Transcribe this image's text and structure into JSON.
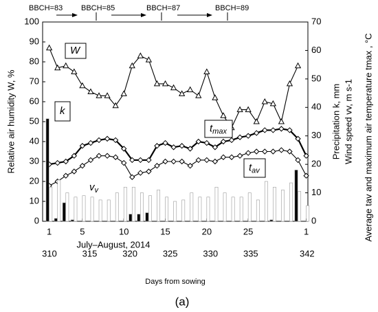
{
  "chart_data": {
    "type": "combo",
    "x": [
      1,
      2,
      3,
      4,
      5,
      6,
      7,
      8,
      9,
      10,
      11,
      12,
      13,
      14,
      15,
      16,
      17,
      18,
      19,
      20,
      21,
      22,
      23,
      24,
      25,
      26,
      27,
      28,
      29,
      30,
      31,
      32
    ],
    "xlim": [
      0.2,
      32.2
    ],
    "xticks": [
      1,
      5,
      10,
      15,
      20,
      25,
      {
        "value": 32,
        "label": "1"
      }
    ],
    "xlabel": "July–August, 2014",
    "x2lim": [
      309.15,
      342.1
    ],
    "x2ticks": [
      310,
      315,
      320,
      325,
      330,
      335,
      342
    ],
    "x2label": "Days from sowing",
    "ylim": [
      0,
      100
    ],
    "yticks": [
      0,
      10,
      20,
      30,
      40,
      50,
      60,
      70,
      80,
      90,
      100
    ],
    "ylabel": "Relative air humidity W, %",
    "y2lim": [
      0,
      70
    ],
    "y2ticks": [
      0,
      10,
      20,
      30,
      40,
      50,
      60,
      70
    ],
    "y2labels": [
      "Precipitation  k, mm",
      "Wind speed  vv, m s-1",
      "Average tav and maximum air temperature tmax , °C"
    ],
    "stages": [
      "BBCH=83",
      "BBCH=85",
      "BBCH=87",
      "BBCH=89"
    ],
    "panel_label": "(a)",
    "series": [
      {
        "name": "W",
        "type": "line",
        "marker": "triangle",
        "color": "#000000",
        "axis": "y",
        "values": [
          87,
          77,
          78,
          75,
          68,
          65,
          63,
          63,
          58,
          64,
          78,
          83,
          81,
          69,
          69,
          67,
          64,
          66,
          63,
          75,
          62,
          53,
          47,
          56,
          56,
          50,
          60,
          59,
          50,
          69,
          78,
          null
        ]
      },
      {
        "name": "t",
        "name_sub": "max",
        "type": "line",
        "marker": "diamond",
        "color": "#000000",
        "axis": "y2",
        "values": [
          20,
          20.5,
          21,
          23,
          26.5,
          27.5,
          28.5,
          29,
          28.5,
          25.5,
          21.5,
          21.5,
          21.5,
          26.5,
          27.5,
          26,
          26.5,
          25.5,
          28,
          27.5,
          26,
          28,
          28.5,
          29.5,
          30,
          31,
          32,
          32,
          32.5,
          32,
          29,
          23
        ]
      },
      {
        "name": "t",
        "name_sub": "av",
        "type": "line",
        "marker": "diamond",
        "color": "#000000",
        "axis": "y2",
        "values": [
          12.5,
          14,
          16,
          17.5,
          19.5,
          21.5,
          23,
          23,
          22.5,
          20.5,
          15.5,
          17,
          17.5,
          19.5,
          21,
          21,
          21,
          19.5,
          21.5,
          21.5,
          21,
          22.5,
          22.5,
          23,
          24,
          24.5,
          24.5,
          24.5,
          25,
          24.5,
          21.5,
          16
        ]
      },
      {
        "name": "k",
        "type": "bar",
        "color": "#000000",
        "axis": "y2",
        "values": [
          36,
          1,
          6.5,
          0.5,
          0,
          0,
          0,
          0,
          0,
          0,
          2.5,
          2.5,
          3,
          0,
          0,
          0,
          0,
          0,
          0,
          0,
          0,
          0,
          0,
          0,
          0,
          0,
          0,
          0.5,
          0,
          0,
          18,
          0
        ]
      },
      {
        "name": "v",
        "name_sub": "v",
        "type": "bar",
        "color": "#ffffff",
        "axis": "y2",
        "values": [
          12,
          14.5,
          10,
          8.5,
          9,
          8.5,
          7.5,
          7.5,
          10,
          12,
          12,
          10,
          9,
          11,
          8.5,
          7,
          7.5,
          10,
          8.5,
          8.5,
          12,
          10,
          8.5,
          8.5,
          10,
          7.5,
          14,
          12,
          11,
          13.5,
          10.5,
          5.5
        ]
      }
    ]
  }
}
